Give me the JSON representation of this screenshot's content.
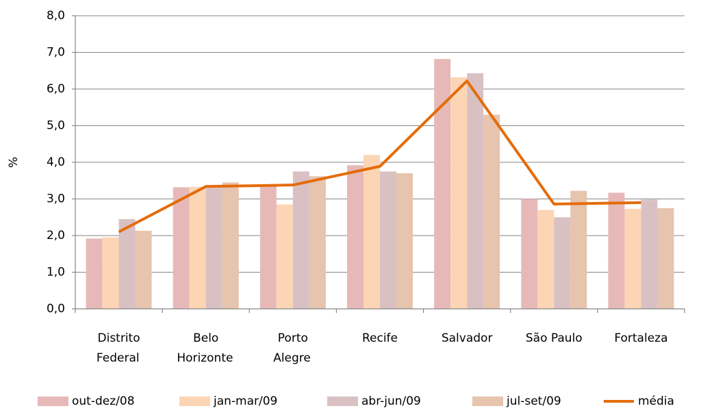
{
  "chart_data": {
    "type": "bar",
    "y_label": "%",
    "categories": [
      "Distrito Federal",
      "Belo Horizonte",
      "Porto Alegre",
      "Recife",
      "Salvador",
      "São Paulo",
      "Fortaleza"
    ],
    "series": [
      {
        "name": "out-dez/08",
        "color": "#e6b9b8",
        "values": [
          1.92,
          3.32,
          3.38,
          3.92,
          6.82,
          3.0,
          3.17
        ]
      },
      {
        "name": "jan-mar/09",
        "color": "#fcd5b5",
        "values": [
          1.95,
          3.33,
          2.85,
          4.2,
          6.32,
          2.7,
          2.73
        ]
      },
      {
        "name": "abr-jun/09",
        "color": "#d9c1c3",
        "values": [
          2.45,
          3.35,
          3.75,
          3.75,
          6.43,
          2.5,
          2.98
        ]
      },
      {
        "name": "jul-set/09",
        "color": "#e6c4ad",
        "values": [
          2.13,
          3.45,
          3.62,
          3.7,
          5.3,
          3.22,
          2.75
        ]
      },
      {
        "name": "média",
        "type": "line",
        "color": "#e46c0a",
        "values": [
          2.1,
          3.34,
          3.38,
          3.89,
          6.22,
          2.86,
          2.9
        ]
      }
    ],
    "ylim": [
      0,
      8
    ],
    "yticks": [
      {
        "value": 0,
        "label": "0,0"
      },
      {
        "value": 1,
        "label": "1,0"
      },
      {
        "value": 2,
        "label": "2,0"
      },
      {
        "value": 3,
        "label": "3,0"
      },
      {
        "value": 4,
        "label": "4,0"
      },
      {
        "value": 5,
        "label": "5,0"
      },
      {
        "value": 6,
        "label": "6,0"
      },
      {
        "value": 7,
        "label": "7,0"
      },
      {
        "value": 8,
        "label": "8,0"
      }
    ],
    "grid": true,
    "legend": "bottom"
  }
}
